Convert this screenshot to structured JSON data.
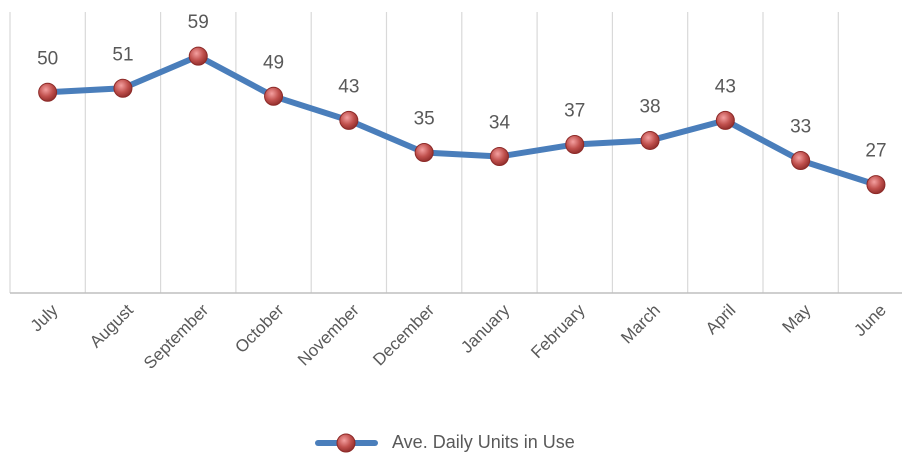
{
  "chart_data": {
    "type": "line",
    "categories": [
      "July",
      "August",
      "September",
      "October",
      "November",
      "December",
      "January",
      "February",
      "March",
      "April",
      "May",
      "June"
    ],
    "series": [
      {
        "name": "Ave. Daily Units in Use",
        "color": "#4a7ebb",
        "values": [
          50,
          51,
          59,
          49,
          43,
          35,
          34,
          37,
          38,
          43,
          33,
          27
        ]
      }
    ],
    "ylim": [
      0,
      70
    ],
    "grid": true,
    "legend": "bottom"
  }
}
